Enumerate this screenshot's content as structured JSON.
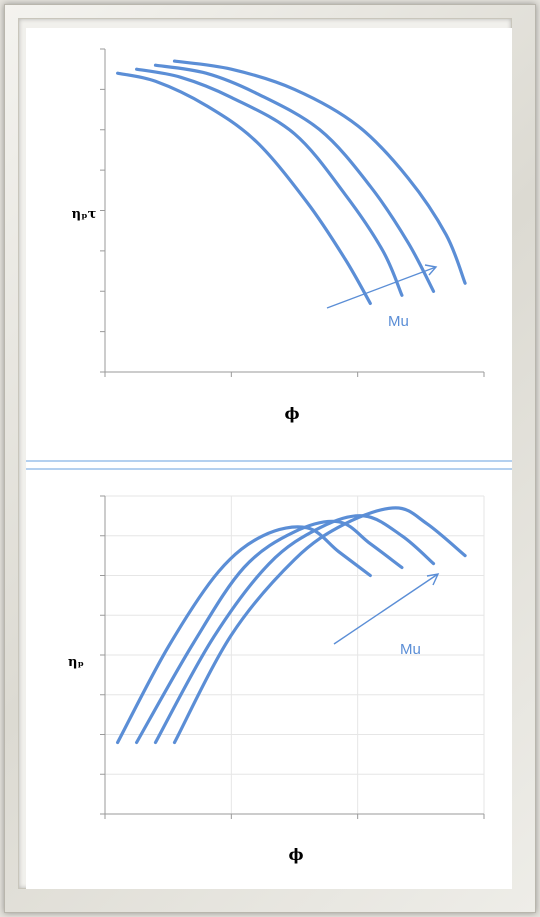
{
  "colors": {
    "curve": "#5b8ed6",
    "axis": "#9a9a9a",
    "grid": "#e6e6e6",
    "divider": "#9cc0ea",
    "text": "#000000",
    "annotation": "#5b8ed6"
  },
  "chart_data": [
    {
      "type": "line",
      "title": "",
      "ylabel": "ηₚτ",
      "xlabel": "ϕ",
      "xlim": [
        0,
        3
      ],
      "ylim": [
        0,
        8
      ],
      "grid": false,
      "annotation": {
        "text": "Mu",
        "arrow": "increasing to upper-right"
      },
      "series": [
        {
          "x": [
            0.1,
            0.4,
            0.8,
            1.2,
            1.6,
            1.9,
            2.1
          ],
          "y": [
            7.4,
            7.2,
            6.6,
            5.7,
            4.2,
            2.8,
            1.7
          ]
        },
        {
          "x": [
            0.25,
            0.6,
            1.0,
            1.5,
            1.9,
            2.2,
            2.35
          ],
          "y": [
            7.5,
            7.3,
            6.8,
            5.9,
            4.4,
            3.0,
            1.9
          ]
        },
        {
          "x": [
            0.4,
            0.8,
            1.2,
            1.7,
            2.1,
            2.4,
            2.6
          ],
          "y": [
            7.6,
            7.4,
            6.9,
            6.0,
            4.6,
            3.2,
            2.0
          ]
        },
        {
          "x": [
            0.55,
            1.0,
            1.5,
            2.0,
            2.4,
            2.7,
            2.85
          ],
          "y": [
            7.7,
            7.5,
            7.0,
            6.1,
            4.8,
            3.4,
            2.2
          ]
        }
      ]
    },
    {
      "type": "line",
      "title": "",
      "ylabel": "ηₚ",
      "xlabel": "ϕ",
      "xlim": [
        0,
        3
      ],
      "ylim": [
        0,
        8
      ],
      "grid": true,
      "annotation": {
        "text": "Mu",
        "arrow": "increasing to upper-right"
      },
      "series": [
        {
          "x": [
            0.1,
            0.5,
            0.9,
            1.25,
            1.6,
            1.85,
            2.1
          ],
          "y": [
            1.8,
            4.2,
            6.1,
            7.0,
            7.2,
            6.6,
            6.0
          ]
        },
        {
          "x": [
            0.25,
            0.7,
            1.1,
            1.5,
            1.85,
            2.1,
            2.35
          ],
          "y": [
            1.8,
            4.3,
            6.2,
            7.1,
            7.35,
            6.8,
            6.2
          ]
        },
        {
          "x": [
            0.4,
            0.85,
            1.3,
            1.7,
            2.05,
            2.35,
            2.6
          ],
          "y": [
            1.8,
            4.4,
            6.3,
            7.2,
            7.5,
            7.0,
            6.3
          ]
        },
        {
          "x": [
            0.55,
            1.0,
            1.5,
            1.9,
            2.3,
            2.55,
            2.85
          ],
          "y": [
            1.8,
            4.5,
            6.4,
            7.3,
            7.7,
            7.3,
            6.5
          ]
        }
      ]
    }
  ]
}
